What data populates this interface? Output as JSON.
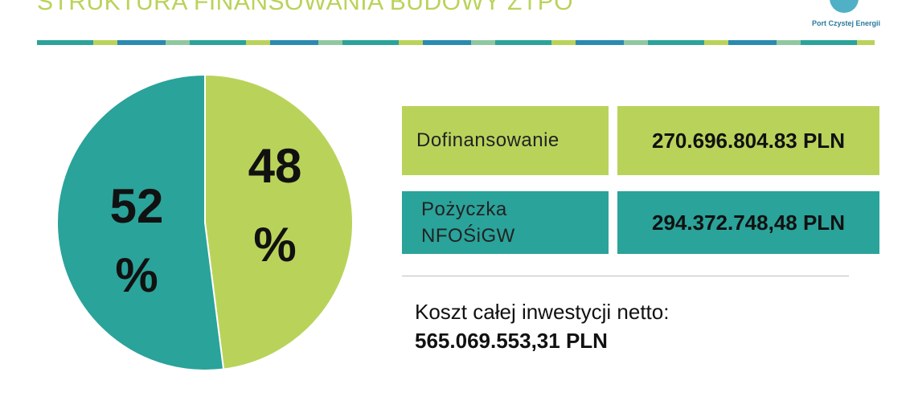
{
  "header": {
    "title": "STRUKTURA FINANSOWANIA BUDOWY ZTPO",
    "logo_text": "Port Czystej Energii"
  },
  "colors": {
    "green": "#b9d35a",
    "teal": "#2aa39a"
  },
  "chart_data": {
    "type": "pie",
    "slices": [
      {
        "value": 48,
        "label": "48 %",
        "color": "#b9d35a"
      },
      {
        "value": 52,
        "label": "52 %",
        "color": "#2aa39a"
      }
    ]
  },
  "table": {
    "rows": [
      {
        "label": "Dofinansowanie",
        "value": "270.696.804.83 PLN",
        "color": "#b9d35a"
      },
      {
        "label_line1": "Pożyczka",
        "label_line2": "NFOŚiGW",
        "value": "294.372.748,48 PLN",
        "color": "#2aa39a"
      }
    ]
  },
  "total": {
    "label": "Koszt całej inwestycji netto:",
    "value": "565.069.553,31 PLN"
  }
}
